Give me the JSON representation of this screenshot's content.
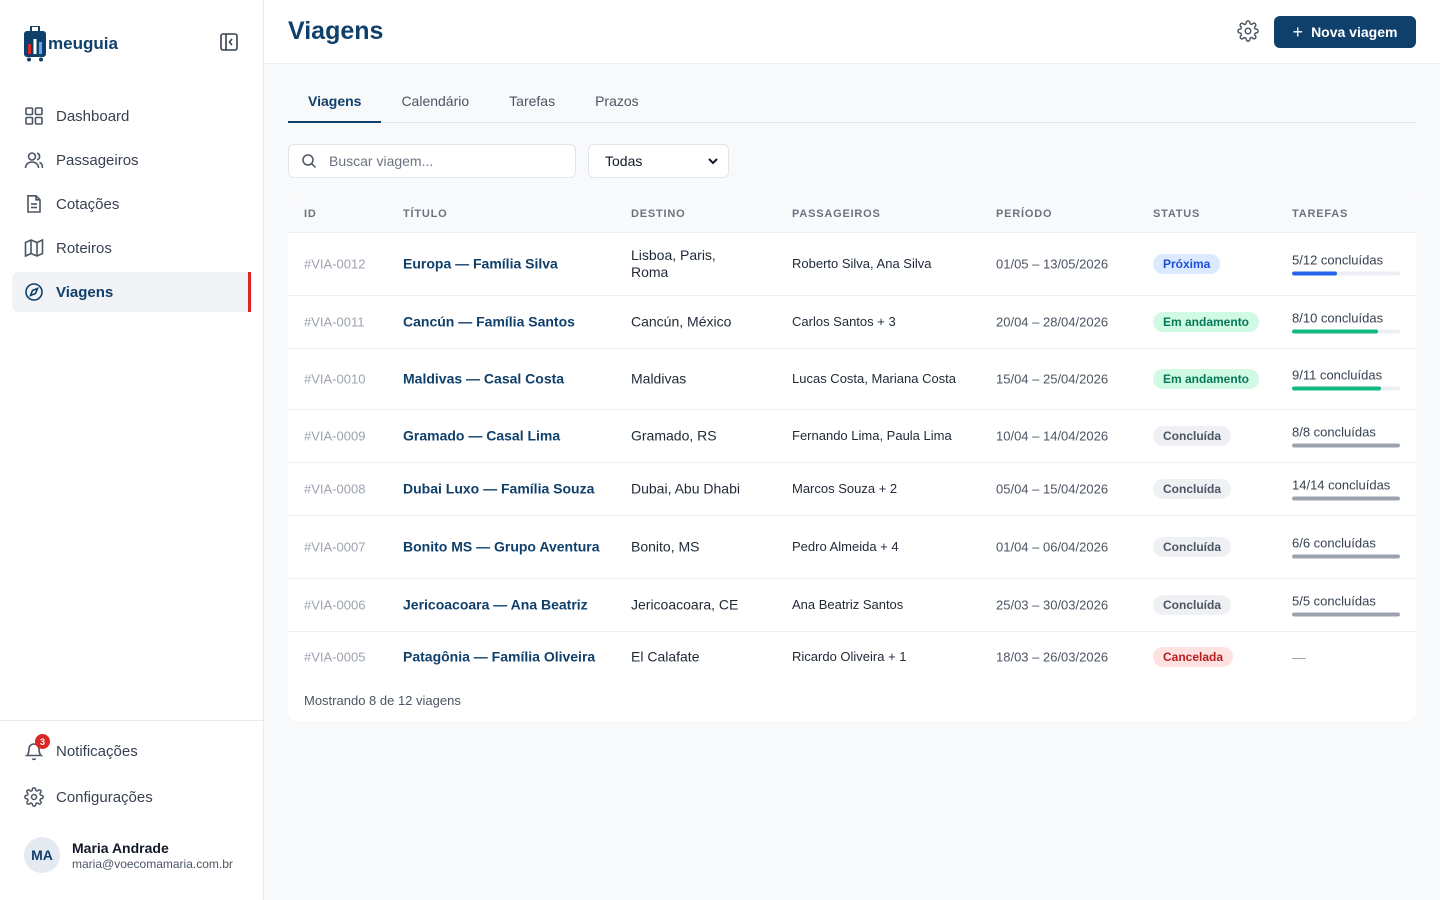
{
  "app": {
    "brand": "meuguia"
  },
  "sidebar": {
    "items": [
      {
        "label": "Dashboard",
        "icon": "grid-icon"
      },
      {
        "label": "Passageiros",
        "icon": "users-icon"
      },
      {
        "label": "Cotações",
        "icon": "document-icon"
      },
      {
        "label": "Roteiros",
        "icon": "map-icon"
      },
      {
        "label": "Viagens",
        "icon": "compass-icon",
        "active": true
      }
    ],
    "notifications": {
      "label": "Notificações",
      "count": "3"
    },
    "settings": {
      "label": "Configurações"
    },
    "user": {
      "initials": "MA",
      "name": "Maria Andrade",
      "email": "maria@voecomamaria.com.br"
    }
  },
  "header": {
    "title": "Viagens",
    "new_button": "Nova viagem"
  },
  "tabs": [
    "Viagens",
    "Calendário",
    "Tarefas",
    "Prazos"
  ],
  "filters": {
    "search_placeholder": "Buscar viagem...",
    "status_selected": "Todas"
  },
  "table": {
    "columns": [
      "ID",
      "TÍTULO",
      "DESTINO",
      "PASSAGEIROS",
      "PERÍODO",
      "STATUS",
      "TAREFAS"
    ],
    "rows": [
      {
        "id": "#VIA-0012",
        "title": "Europa — Família Silva",
        "dest": "Lisboa, Paris, Roma",
        "pass": "Roberto Silva, Ana Silva",
        "period": "01/05 – 13/05/2026",
        "status": "Próxima",
        "tasks": "5/12 concluídas",
        "progress": 0.42
      },
      {
        "id": "#VIA-0011",
        "title": "Cancún — Família Santos",
        "dest": "Cancún, México",
        "pass": "Carlos Santos + 3",
        "period": "20/04 – 28/04/2026",
        "status": "Em andamento",
        "tasks": "8/10 concluídas",
        "progress": 0.8
      },
      {
        "id": "#VIA-0010",
        "title": "Maldivas — Casal Costa",
        "dest": "Maldivas",
        "pass": "Lucas Costa, Mariana Costa",
        "period": "15/04 – 25/04/2026",
        "status": "Em andamento",
        "tasks": "9/11 concluídas",
        "progress": 0.82
      },
      {
        "id": "#VIA-0009",
        "title": "Gramado — Casal Lima",
        "dest": "Gramado, RS",
        "pass": "Fernando Lima, Paula Lima",
        "period": "10/04 – 14/04/2026",
        "status": "Concluída",
        "tasks": "8/8 concluídas",
        "progress": 1
      },
      {
        "id": "#VIA-0008",
        "title": "Dubai Luxo — Família Souza",
        "dest": "Dubai, Abu Dhabi",
        "pass": "Marcos Souza + 2",
        "period": "05/04 – 15/04/2026",
        "status": "Concluída",
        "tasks": "14/14 concluídas",
        "progress": 1
      },
      {
        "id": "#VIA-0007",
        "title": "Bonito MS — Grupo Aventura",
        "dest": "Bonito, MS",
        "pass": "Pedro Almeida + 4",
        "period": "01/04 – 06/04/2026",
        "status": "Concluída",
        "tasks": "6/6 concluídas",
        "progress": 1
      },
      {
        "id": "#VIA-0006",
        "title": "Jericoacoara — Ana Beatriz",
        "dest": "Jericoacoara, CE",
        "pass": "Ana Beatriz Santos",
        "period": "25/03 – 30/03/2026",
        "status": "Concluída",
        "tasks": "5/5 concluídas",
        "progress": 1
      },
      {
        "id": "#VIA-0005",
        "title": "Patagônia — Família Oliveira",
        "dest": "El Calafate",
        "pass": "Ricardo Oliveira + 1",
        "period": "18/03 – 26/03/2026",
        "status": "Cancelada",
        "tasks": "—",
        "progress": null
      }
    ],
    "footer": "Mostrando 8 de 12 viagens"
  },
  "status_styles": {
    "Próxima": {
      "bg": "#dbeafe",
      "fg": "#1d4ed8",
      "bar": "#2563eb"
    },
    "Em andamento": {
      "bg": "#d1fae5",
      "fg": "#047857",
      "bar": "#10b981"
    },
    "Concluída": {
      "bg": "#eef0f3",
      "fg": "#4b5563",
      "bar": "#9ca3af"
    },
    "Cancelada": {
      "bg": "#fee2e2",
      "fg": "#b91c1c",
      "bar": "#9ca3af"
    }
  }
}
